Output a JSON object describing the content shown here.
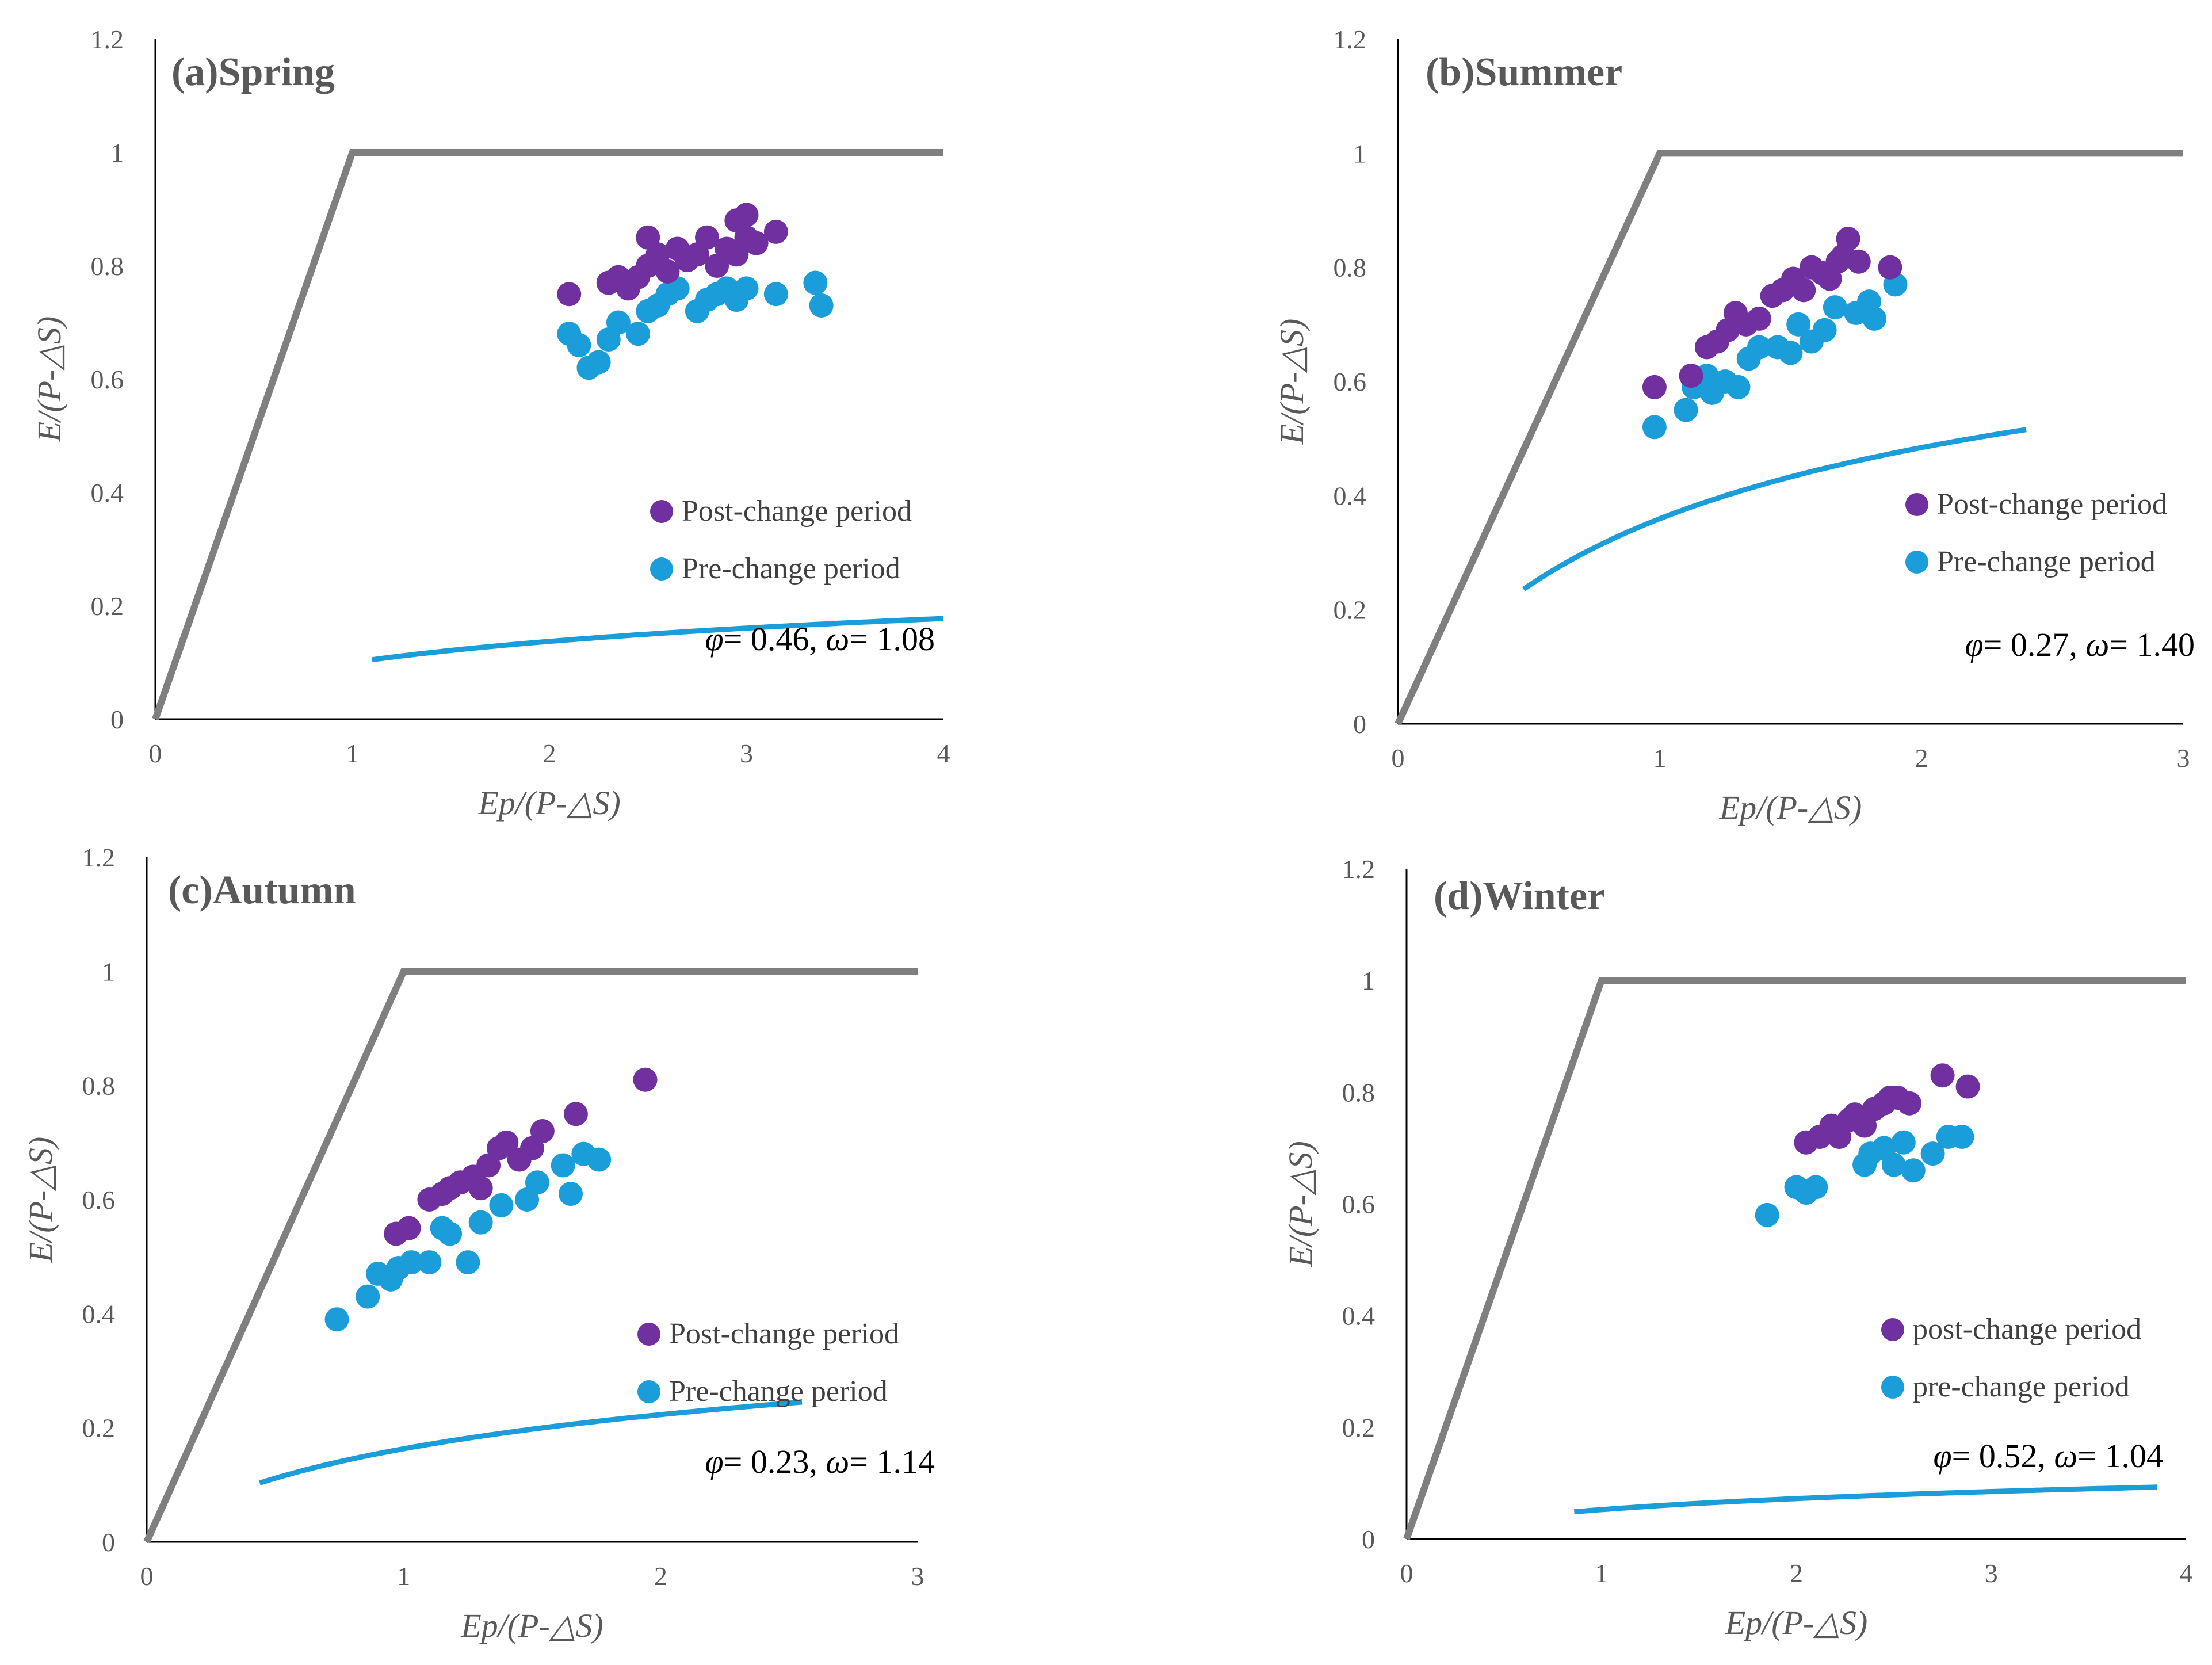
{
  "chart_data": [
    {
      "type": "scatter",
      "title": "(a)Spring",
      "xlabel": "Ep/(P-△S)",
      "ylabel": "E/(P-△S)",
      "xlim": [
        0,
        4
      ],
      "ylim": [
        0,
        1.2
      ],
      "xticks": [
        "0",
        "1",
        "2",
        "3",
        "4"
      ],
      "yticks": [
        "0",
        "0.2",
        "0.4",
        "0.6",
        "0.8",
        "1",
        "1.2"
      ],
      "params": {
        "phi": "0.46",
        "omega": "1.08"
      },
      "curve": {
        "omega": 1.08,
        "x_range": [
          1.1,
          4.0
        ]
      },
      "limits": [
        [
          0,
          0
        ],
        [
          1,
          1
        ],
        [
          4,
          1
        ]
      ],
      "series": [
        {
          "name": "Post-change period",
          "color": "#7030A0",
          "x": [
            2.1,
            2.3,
            2.35,
            2.4,
            2.45,
            2.5,
            2.5,
            2.55,
            2.6,
            2.65,
            2.7,
            2.75,
            2.8,
            2.85,
            2.9,
            2.95,
            2.95,
            3.0,
            3.0,
            3.05,
            3.15
          ],
          "y": [
            0.75,
            0.77,
            0.78,
            0.76,
            0.78,
            0.8,
            0.85,
            0.82,
            0.79,
            0.83,
            0.81,
            0.82,
            0.85,
            0.8,
            0.83,
            0.88,
            0.82,
            0.85,
            0.89,
            0.84,
            0.86
          ]
        },
        {
          "name": "Pre-change period",
          "color": "#1B9DD9",
          "x": [
            2.1,
            2.15,
            2.2,
            2.25,
            2.3,
            2.35,
            2.45,
            2.5,
            2.55,
            2.6,
            2.65,
            2.75,
            2.8,
            2.85,
            2.9,
            2.95,
            3.0,
            3.15,
            3.35,
            3.38
          ],
          "y": [
            0.68,
            0.66,
            0.62,
            0.63,
            0.67,
            0.7,
            0.68,
            0.72,
            0.73,
            0.75,
            0.76,
            0.72,
            0.74,
            0.75,
            0.76,
            0.74,
            0.76,
            0.75,
            0.77,
            0.73
          ]
        }
      ],
      "legend": [
        "Post-change period",
        "Pre-change period"
      ]
    },
    {
      "type": "scatter",
      "title": "(b)Summer",
      "xlabel": "Ep/(P-△S)",
      "ylabel": "E/(P-△S)",
      "xlim": [
        0,
        3
      ],
      "ylim": [
        0,
        1.2
      ],
      "xticks": [
        "0",
        "1",
        "2",
        "3"
      ],
      "yticks": [
        "0",
        "0.2",
        "0.4",
        "0.6",
        "0.8",
        "1",
        "1.2"
      ],
      "params": {
        "phi": "0.27",
        "omega": "1.40"
      },
      "curve": {
        "omega": 1.4,
        "x_range": [
          0.48,
          2.4
        ]
      },
      "limits": [
        [
          0,
          0
        ],
        [
          1,
          1
        ],
        [
          3,
          1
        ]
      ],
      "series": [
        {
          "name": "Post-change period",
          "color": "#7030A0",
          "x": [
            0.98,
            1.12,
            1.18,
            1.22,
            1.26,
            1.29,
            1.33,
            1.38,
            1.43,
            1.47,
            1.51,
            1.55,
            1.58,
            1.62,
            1.65,
            1.68,
            1.7,
            1.72,
            1.76,
            1.88
          ],
          "y": [
            0.59,
            0.61,
            0.66,
            0.67,
            0.69,
            0.72,
            0.7,
            0.71,
            0.75,
            0.76,
            0.78,
            0.76,
            0.8,
            0.79,
            0.78,
            0.81,
            0.82,
            0.85,
            0.81,
            0.8
          ]
        },
        {
          "name": "Pre-change period",
          "color": "#1B9DD9",
          "x": [
            0.98,
            1.1,
            1.13,
            1.18,
            1.2,
            1.25,
            1.3,
            1.34,
            1.38,
            1.45,
            1.5,
            1.53,
            1.58,
            1.63,
            1.67,
            1.75,
            1.8,
            1.82,
            1.9
          ],
          "y": [
            0.52,
            0.55,
            0.59,
            0.61,
            0.58,
            0.6,
            0.59,
            0.64,
            0.66,
            0.66,
            0.65,
            0.7,
            0.67,
            0.69,
            0.73,
            0.72,
            0.74,
            0.71,
            0.77
          ]
        }
      ],
      "legend": [
        "Post-change period",
        "Pre-change period"
      ]
    },
    {
      "type": "scatter",
      "title": "(c)Autumn",
      "xlabel": "Ep/(P-△S)",
      "ylabel": "E/(P-△S)",
      "xlim": [
        0,
        3
      ],
      "ylim": [
        0,
        1.2
      ],
      "xticks": [
        "0",
        "1",
        "2",
        "3"
      ],
      "yticks": [
        "0",
        "0.2",
        "0.4",
        "0.6",
        "0.8",
        "1",
        "1.2"
      ],
      "params": {
        "phi": "0.23",
        "omega": "1.14"
      },
      "curve": {
        "omega": 1.14,
        "x_range": [
          0.44,
          2.55
        ]
      },
      "limits": [
        [
          0,
          0
        ],
        [
          1,
          1
        ],
        [
          3,
          1
        ]
      ],
      "series": [
        {
          "name": "Post-change period",
          "color": "#7030A0",
          "x": [
            0.97,
            1.02,
            1.1,
            1.15,
            1.18,
            1.22,
            1.27,
            1.3,
            1.33,
            1.37,
            1.4,
            1.45,
            1.5,
            1.54,
            1.67,
            1.94
          ],
          "y": [
            0.54,
            0.55,
            0.6,
            0.61,
            0.62,
            0.63,
            0.64,
            0.62,
            0.66,
            0.69,
            0.7,
            0.67,
            0.69,
            0.72,
            0.75,
            0.81
          ]
        },
        {
          "name": "Pre-change period",
          "color": "#1B9DD9",
          "x": [
            0.74,
            0.86,
            0.9,
            0.95,
            0.98,
            1.03,
            1.1,
            1.15,
            1.18,
            1.25,
            1.3,
            1.38,
            1.48,
            1.52,
            1.62,
            1.65,
            1.7,
            1.76
          ],
          "y": [
            0.39,
            0.43,
            0.47,
            0.46,
            0.48,
            0.49,
            0.49,
            0.55,
            0.54,
            0.49,
            0.56,
            0.59,
            0.6,
            0.63,
            0.66,
            0.61,
            0.68,
            0.67
          ]
        }
      ],
      "legend": [
        "Post-change period",
        "Pre-change period"
      ]
    },
    {
      "type": "scatter",
      "title": "(d)Winter",
      "xlabel": "Ep/(P-△S)",
      "ylabel": "E/(P-△S)",
      "xlim": [
        0,
        4
      ],
      "ylim": [
        0,
        1.2
      ],
      "xticks": [
        "0",
        "1",
        "2",
        "3",
        "4"
      ],
      "yticks": [
        "0",
        "0.2",
        "0.4",
        "0.6",
        "0.8",
        "1",
        "1.2"
      ],
      "params": {
        "phi": "0.52",
        "omega": "1.04"
      },
      "curve": {
        "omega": 1.04,
        "x_range": [
          0.86,
          3.85
        ]
      },
      "limits": [
        [
          0,
          0
        ],
        [
          1,
          1
        ],
        [
          4,
          1
        ]
      ],
      "series": [
        {
          "name": "post-change period",
          "color": "#7030A0",
          "x": [
            2.05,
            2.12,
            2.18,
            2.22,
            2.27,
            2.3,
            2.35,
            2.4,
            2.45,
            2.48,
            2.52,
            2.58,
            2.75,
            2.88
          ],
          "y": [
            0.71,
            0.72,
            0.74,
            0.72,
            0.75,
            0.76,
            0.74,
            0.77,
            0.78,
            0.79,
            0.79,
            0.78,
            0.83,
            0.81
          ]
        },
        {
          "name": "pre-change period",
          "color": "#1B9DD9",
          "x": [
            1.85,
            2.0,
            2.05,
            2.1,
            2.35,
            2.38,
            2.45,
            2.5,
            2.55,
            2.6,
            2.7,
            2.78,
            2.85
          ],
          "y": [
            0.58,
            0.63,
            0.62,
            0.63,
            0.67,
            0.69,
            0.7,
            0.67,
            0.71,
            0.66,
            0.69,
            0.72,
            0.72
          ]
        }
      ],
      "legend": [
        "post-change period",
        "pre-change period"
      ]
    }
  ]
}
